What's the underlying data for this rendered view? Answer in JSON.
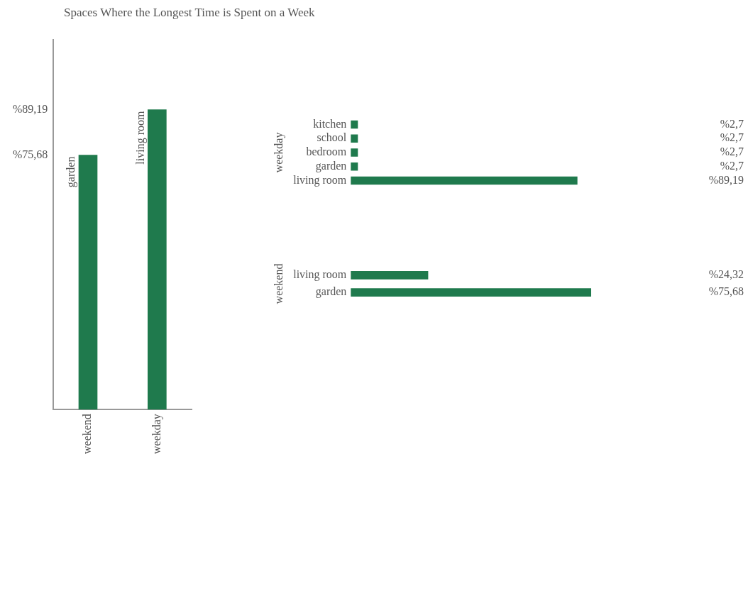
{
  "chart_data": [
    {
      "type": "bar",
      "title": "Spaces Where the Longest Time is Spent on a Week",
      "categories": [
        "weekend",
        "weekday"
      ],
      "values": [
        75.68,
        89.19
      ],
      "color": "#1f7a4d",
      "ylim": [
        0,
        110
      ],
      "yticks": [
        {
          "value": 75.68,
          "label": "%75,68"
        },
        {
          "value": 89.19,
          "label": "%89,19"
        }
      ],
      "annotations": [
        {
          "text": "garden",
          "x": "weekend",
          "y": 75.68
        },
        {
          "text": "living room",
          "x": "weekday",
          "y": 89.19
        }
      ]
    },
    {
      "type": "bar",
      "orientation": "horizontal",
      "ylabel": "weekday",
      "categories": [
        "kitchen",
        "school",
        "bedroom",
        "garden",
        "living room"
      ],
      "values": [
        2.7,
        2.7,
        2.7,
        2.7,
        89.19
      ],
      "color": "#1f7a4d",
      "tick_labels": "y",
      "value_labels": [
        "%2,7",
        "%2,7",
        "%2,7",
        "%2,7",
        "%89,19"
      ]
    },
    {
      "type": "bar",
      "orientation": "horizontal",
      "ylabel": "weekend",
      "categories": [
        "living room",
        "garden"
      ],
      "values": [
        24.32,
        75.68
      ],
      "color": "#1f7a4d",
      "tick_labels": "y",
      "value_labels": [
        "%24,32",
        "%75,68"
      ]
    }
  ]
}
